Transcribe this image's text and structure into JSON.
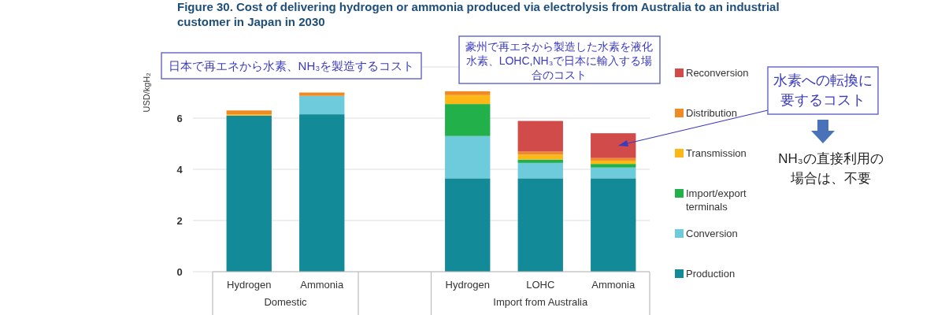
{
  "chart_data": {
    "type": "bar",
    "stacked": true,
    "title": "Figure 30.    Cost of delivering hydrogen or ammonia produced via electrolysis from Australia to an industrial customer in Japan in 2030",
    "ylabel": "USD/kgH₂",
    "categories": [
      "Hydrogen",
      "Ammonia",
      null,
      "Hydrogen",
      "LOHC",
      "Ammonia"
    ],
    "series": [
      {
        "name": "Production",
        "color": "#138a98",
        "values": [
          6.1,
          6.15,
          null,
          3.65,
          3.65,
          3.65
        ]
      },
      {
        "name": "Conversion",
        "color": "#6ecbdb",
        "values": [
          0,
          0.72,
          null,
          1.65,
          0.6,
          0.42
        ]
      },
      {
        "name": "Import/export terminals",
        "color": "#22b04b",
        "values": [
          0,
          0,
          null,
          1.25,
          0.13,
          0.14
        ]
      },
      {
        "name": "Transmission",
        "color": "#fbb817",
        "values": [
          0.05,
          0,
          null,
          0.35,
          0.19,
          0.13
        ]
      },
      {
        "name": "Distribution",
        "color": "#f08a24",
        "values": [
          0.15,
          0.13,
          null,
          0.15,
          0.12,
          0.1
        ]
      },
      {
        "name": "Reconversion",
        "color": "#d14b4b",
        "values": [
          0,
          0,
          null,
          0,
          1.2,
          0.97
        ]
      }
    ],
    "ylim": [
      0,
      8
    ],
    "yticks": [
      0,
      2,
      4,
      6,
      {
        "value": 8,
        "label": null
      }
    ],
    "grid": "y",
    "legend": "right",
    "annotations": [
      "日本で再エネから水素、NH₃を製造するコスト",
      "豪州で再エネから製造した水素を液化水素、LOHC,NH₃で日本に輸入する場合のコスト",
      "水素への転換に要するコスト",
      "NH₃の直接利用の場合は、不要",
      "Domestic",
      "Import from Australia"
    ]
  }
}
